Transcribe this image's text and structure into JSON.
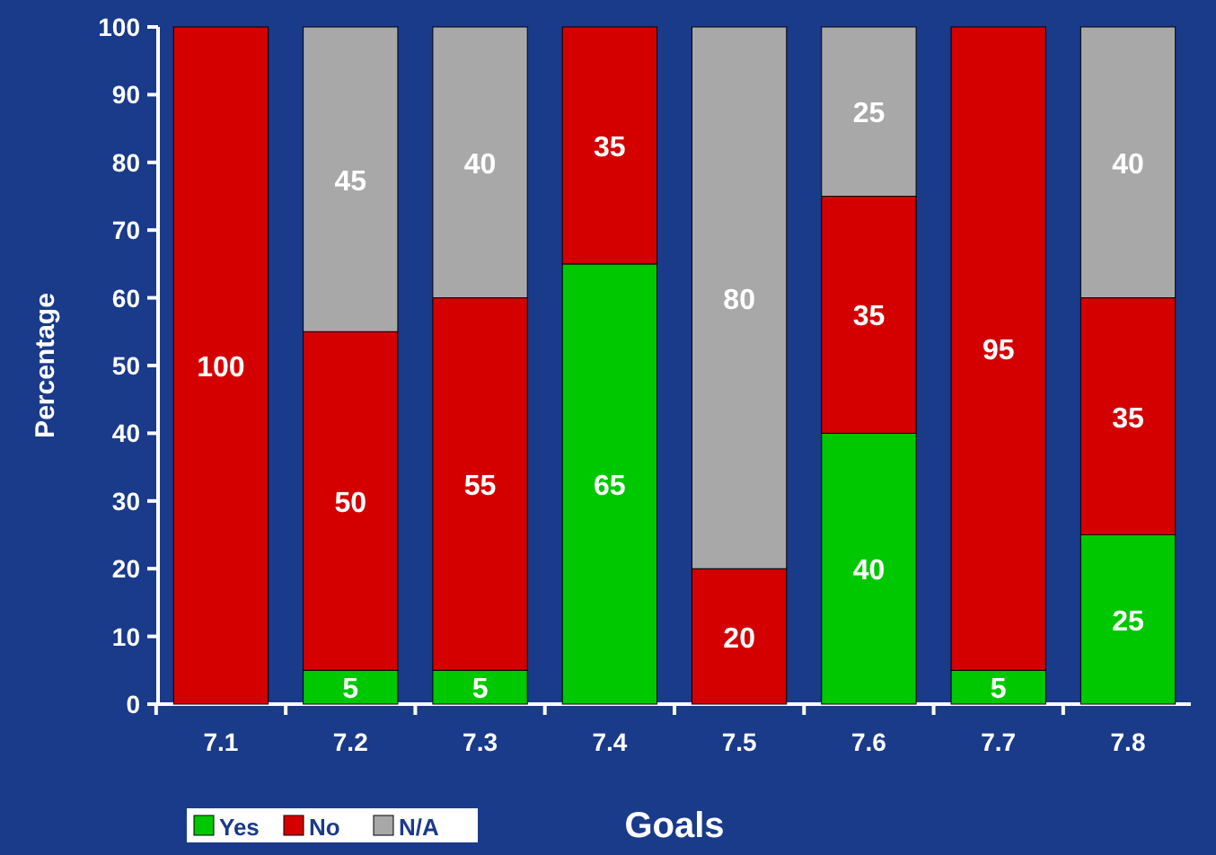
{
  "chart_data": {
    "type": "bar",
    "stacked": true,
    "xlabel": "Goals",
    "ylabel": "Percentage",
    "categories": [
      "7.1",
      "7.2",
      "7.3",
      "7.4",
      "7.5",
      "7.6",
      "7.7",
      "7.8"
    ],
    "series": [
      {
        "name": "Yes",
        "color": "#00c800",
        "values": [
          0,
          5,
          5,
          65,
          0,
          40,
          5,
          25
        ],
        "value_labels": [
          null,
          "5",
          "5",
          "65",
          null,
          "40",
          "5",
          "25"
        ]
      },
      {
        "name": "No",
        "color": "#d40000",
        "values": [
          100,
          50,
          55,
          35,
          20,
          35,
          95,
          35
        ],
        "value_labels": [
          "100",
          "50",
          "55",
          "35",
          "20",
          "35",
          "95",
          "35"
        ]
      },
      {
        "name": "N/A",
        "color": "#a8a8a8",
        "values": [
          0,
          45,
          40,
          0,
          80,
          25,
          0,
          40
        ],
        "value_labels": [
          null,
          "45",
          "40",
          null,
          "80",
          "25",
          null,
          "40"
        ]
      }
    ],
    "ylim": [
      0,
      100
    ],
    "yticks": [
      0,
      10,
      20,
      30,
      40,
      50,
      60,
      70,
      80,
      90,
      100
    ],
    "legend": "bottom left"
  }
}
